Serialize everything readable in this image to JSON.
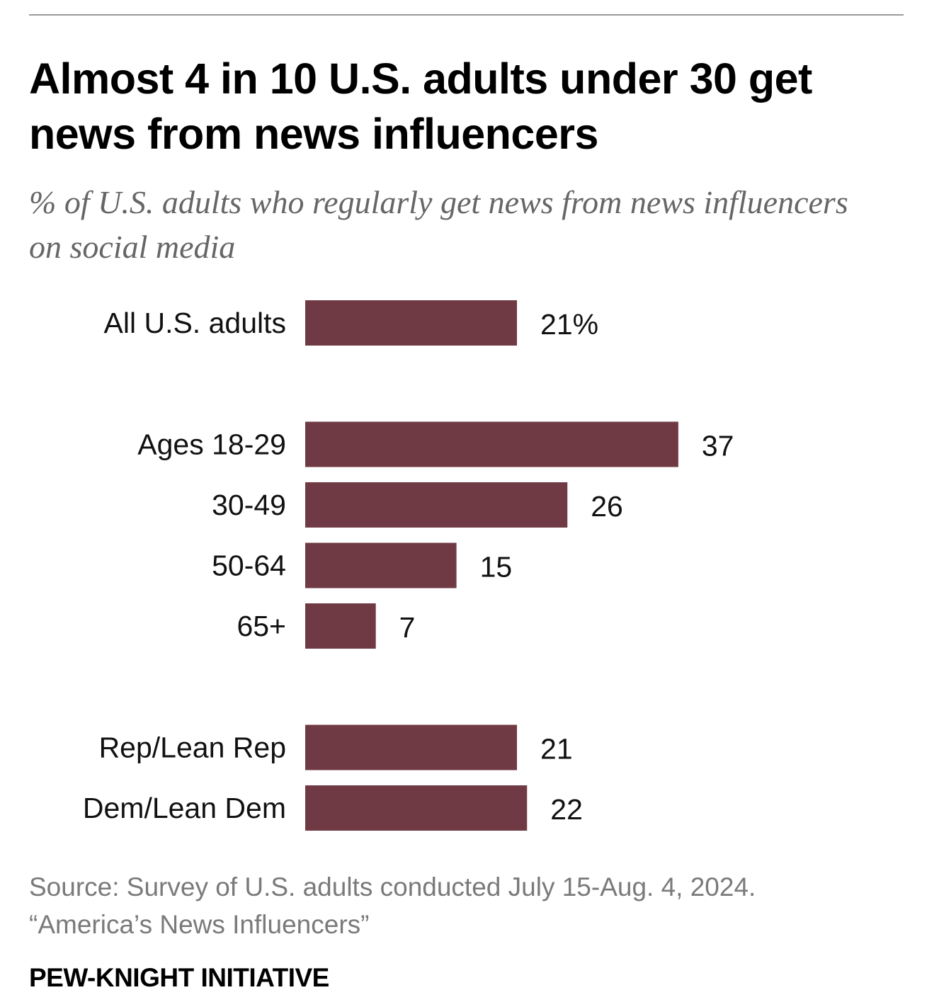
{
  "header": {
    "title": "Almost 4 in 10 U.S. adults under 30 get news from news influencers",
    "subtitle": "% of U.S. adults who regularly get news from news influencers on social media"
  },
  "footer": {
    "source": "Source: Survey of U.S. adults conducted July 15-Aug. 4, 2024.",
    "report": "“America’s News Influencers”",
    "brand": "PEW-KNIGHT INITIATIVE"
  },
  "colors": {
    "bar": "#703a44",
    "label": "#111111"
  },
  "chart_data": {
    "type": "bar",
    "orientation": "horizontal",
    "title": "Almost 4 in 10 U.S. adults under 30 get news from news influencers",
    "subtitle": "% of U.S. adults who regularly get news from news influencers on social media",
    "xlabel": "",
    "ylabel": "",
    "xlim": [
      0,
      40
    ],
    "grid": false,
    "legend": "none",
    "groups": [
      {
        "categories": [
          "All U.S. adults"
        ],
        "values": [
          21
        ],
        "value_labels": [
          "21%"
        ]
      },
      {
        "categories": [
          "Ages 18-29",
          "30-49",
          "50-64",
          "65+"
        ],
        "values": [
          37,
          26,
          15,
          7
        ],
        "value_labels": [
          "37",
          "26",
          "15",
          "7"
        ]
      },
      {
        "categories": [
          "Rep/Lean Rep",
          "Dem/Lean Dem"
        ],
        "values": [
          21,
          22
        ],
        "value_labels": [
          "21",
          "22"
        ]
      }
    ]
  }
}
